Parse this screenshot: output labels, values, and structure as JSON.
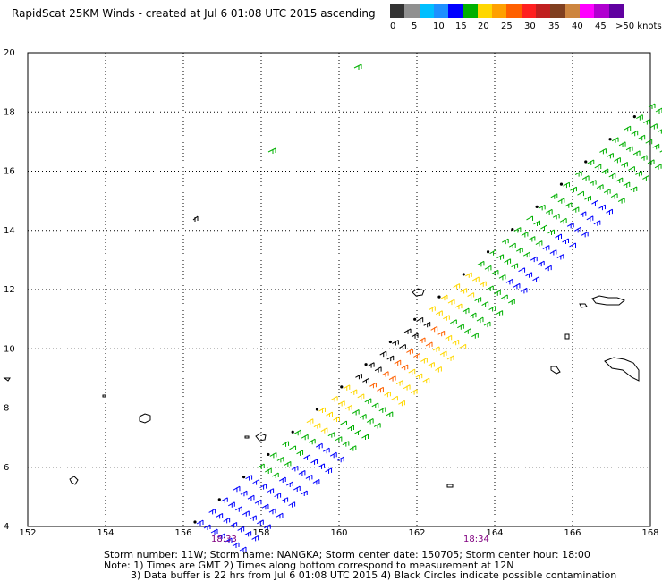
{
  "header": {
    "title": "RapidScat 25KM Winds - created at Jul  6 01:08 UTC 2015 ascending"
  },
  "colorbar": {
    "colors": [
      "#333333",
      "#909090",
      "#00bfff",
      "#1e90ff",
      "#0000ff",
      "#00b000",
      "#ffd700",
      "#ffa000",
      "#ff6000",
      "#ff2020",
      "#c02020",
      "#804020",
      "#cd853f",
      "#ff00ff",
      "#b000d0",
      "#6000a0"
    ],
    "labels": [
      "0",
      "5",
      "10",
      "15",
      "20",
      "25",
      "30",
      "35",
      "40",
      "45",
      ">50 knots"
    ]
  },
  "map": {
    "x_ticks": [
      "152",
      "154",
      "156",
      "158",
      "160",
      "162",
      "164",
      "166",
      "168"
    ],
    "y_ticks": [
      "20",
      "18",
      "16",
      "14",
      "12",
      "10",
      "8",
      "6",
      "4"
    ],
    "x_range": [
      152,
      168
    ],
    "y_range": [
      4,
      20
    ],
    "grid": true,
    "time_labels": [
      "18:33",
      "18:34"
    ],
    "time_label_lon": [
      156.8,
      164.8
    ]
  },
  "footer": {
    "line1": "Storm number: 11W;   Storm name: NANGKA;   Storm center date: 150705;   Storm center hour: 18:00",
    "line2": "Note: 1) Times are GMT  2) Times along bottom correspond to measurement at 12N",
    "line3": "3) Data buffer is 22 hrs from Jul  6 01:08 UTC 2015   4) Black Circles indicate possible contamination"
  }
}
